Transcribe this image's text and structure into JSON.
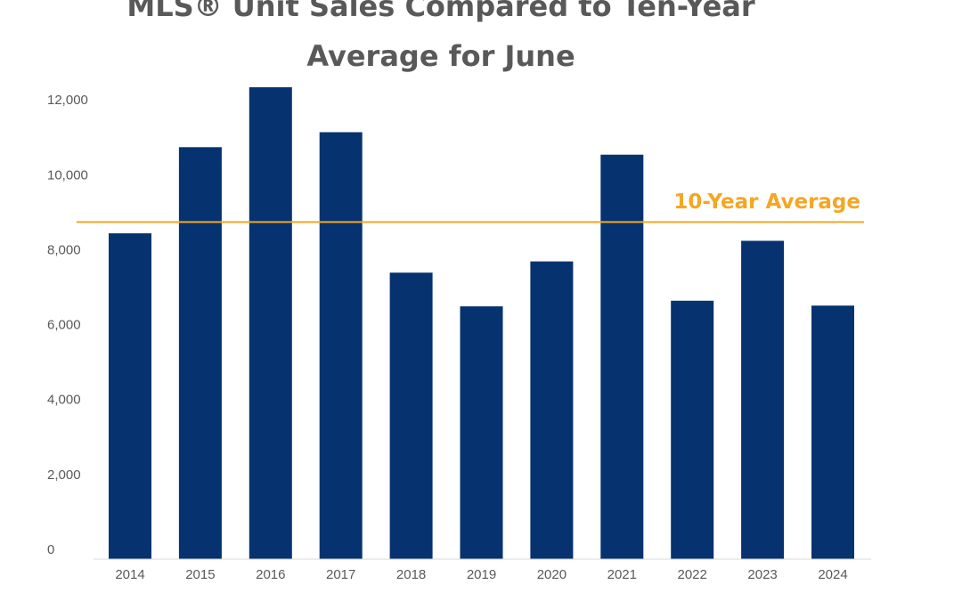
{
  "chart_data": {
    "type": "bar",
    "title_lines": [
      "MLS® Unit Sales Compared to Ten-Year",
      "Average for June"
    ],
    "categories": [
      "2014",
      "2015",
      "2016",
      "2017",
      "2018",
      "2019",
      "2020",
      "2021",
      "2022",
      "2023",
      "2024"
    ],
    "values": [
      8700,
      11000,
      12600,
      11400,
      7650,
      6750,
      7950,
      10800,
      6900,
      8500,
      6770
    ],
    "ylim": [
      0,
      12600
    ],
    "yticks": [
      0,
      2000,
      4000,
      6000,
      8000,
      10000,
      12000
    ],
    "ytick_labels": [
      "0",
      "2,000",
      "4,000",
      "6,000",
      "8,000",
      "10,000",
      "12,000"
    ],
    "reference_line": {
      "label": "10-Year Average",
      "value": 9000,
      "color": "#f5a623"
    },
    "bar_color": "#06336f",
    "grid": false,
    "legend": "none"
  }
}
